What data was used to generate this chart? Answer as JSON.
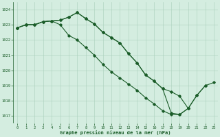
{
  "title": "Graphe pression niveau de la mer (hPa)",
  "background_color": "#d4ede0",
  "grid_color": "#aacfbb",
  "line_color": "#1a5c28",
  "xlim": [
    -0.5,
    23.5
  ],
  "ylim": [
    1016.5,
    1024.5
  ],
  "yticks": [
    1017,
    1018,
    1019,
    1020,
    1021,
    1022,
    1023,
    1024
  ],
  "xticks": [
    0,
    1,
    2,
    3,
    4,
    5,
    6,
    7,
    8,
    9,
    10,
    11,
    12,
    13,
    14,
    15,
    16,
    17,
    18,
    19,
    20,
    21,
    22,
    23
  ],
  "series1": [
    1022.8,
    1023.0,
    1023.0,
    1023.2,
    1023.25,
    1023.3,
    1023.5,
    1023.8,
    1023.4,
    1023.05,
    1022.5,
    1022.15,
    1021.8,
    1021.1,
    1020.5,
    1019.7,
    1019.3,
    1018.8,
    1018.6,
    1018.3,
    1017.5,
    null,
    null,
    null
  ],
  "series2": [
    1022.8,
    1023.0,
    1023.0,
    1023.2,
    1023.25,
    1023.0,
    1022.3,
    1022.0,
    1021.5,
    1021.0,
    1020.4,
    1019.9,
    1019.5,
    1019.1,
    1018.7,
    1018.2,
    1017.8,
    1017.35,
    1017.1,
    1017.1,
    1017.5,
    1018.35,
    1019.0,
    null
  ],
  "series3": [
    1022.8,
    1023.0,
    1023.0,
    1023.2,
    1023.25,
    1023.3,
    1023.5,
    1023.8,
    1023.4,
    1023.05,
    1022.5,
    1022.15,
    1021.8,
    1021.1,
    1020.5,
    1019.7,
    1019.3,
    1018.8,
    1017.2,
    1017.1,
    1017.5,
    1018.35,
    1019.0,
    1019.2
  ]
}
